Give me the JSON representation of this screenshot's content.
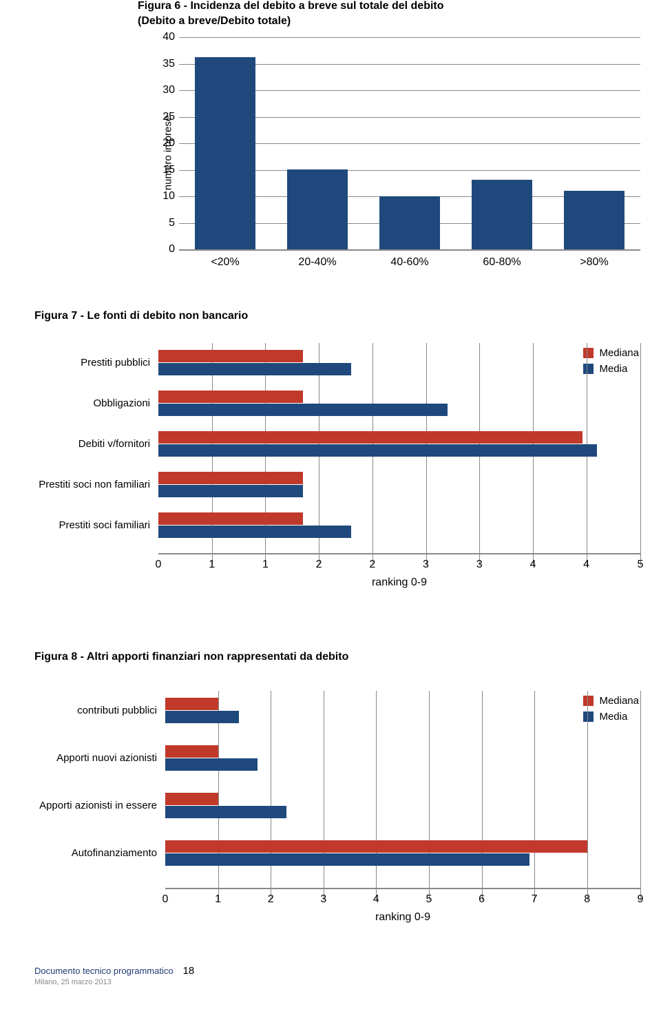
{
  "colors": {
    "bar_blue": "#1f497d",
    "bar_red": "#c0392b",
    "grid": "#888888",
    "background": "#ffffff"
  },
  "figure6": {
    "title": "Figura 6 - Incidenza del debito a breve sul totale del debito",
    "subtitle": "(Debito a breve/Debito totale)",
    "type": "bar",
    "ylabel": "numero imprese",
    "ylim": [
      0,
      40
    ],
    "ytick_step": 5,
    "yticks": [
      0,
      5,
      10,
      15,
      20,
      25,
      30,
      35,
      40
    ],
    "categories": [
      "<20%",
      "20-40%",
      "40-60%",
      "60-80%",
      ">80%"
    ],
    "values": [
      36,
      15,
      10,
      13,
      11
    ],
    "bar_color": "#1f497d",
    "label_fontsize": 16
  },
  "figure7": {
    "title": "Figura 7 - Le fonti di debito non bancario",
    "type": "grouped_horizontal_bar",
    "categories": [
      "Prestiti pubblici",
      "Obbligazioni",
      "Debiti v/fornitori",
      "Prestiti soci non familiari",
      "Prestiti soci familiari"
    ],
    "series": [
      {
        "name": "Mediana",
        "color": "#c0392b",
        "values": [
          1.5,
          1.5,
          4.4,
          1.5,
          1.5
        ]
      },
      {
        "name": "Media",
        "color": "#1f497d",
        "values": [
          2.0,
          3.0,
          4.55,
          1.5,
          2.0
        ]
      }
    ],
    "xlim": [
      0,
      5
    ],
    "xticks": [
      0,
      1,
      1,
      2,
      2,
      3,
      3,
      4,
      4,
      5
    ],
    "xtick_positions_pct": [
      0,
      11.1,
      22.2,
      33.3,
      44.4,
      55.5,
      66.6,
      77.7,
      88.8,
      100
    ],
    "grid_positions_pct": [
      11.1,
      22.2,
      33.3,
      44.4,
      55.5,
      66.6,
      77.7,
      88.8,
      100
    ],
    "xlabel": "ranking 0-9",
    "legend": [
      "Mediana",
      "Media"
    ]
  },
  "figure8": {
    "title": "Figura 8 - Altri apporti finanziari non rappresentati da debito",
    "type": "grouped_horizontal_bar",
    "categories": [
      "contributi pubblici",
      "Apporti nuovi azionisti",
      "Apporti azionisti in essere",
      "Autofinanziamento"
    ],
    "series": [
      {
        "name": "Mediana",
        "color": "#c0392b",
        "values": [
          1.0,
          1.0,
          1.0,
          8.0
        ]
      },
      {
        "name": "Media",
        "color": "#1f497d",
        "values": [
          1.4,
          1.75,
          2.3,
          6.9
        ]
      }
    ],
    "xlim": [
      0,
      9
    ],
    "xticks": [
      0,
      1,
      2,
      3,
      4,
      5,
      6,
      7,
      8,
      9
    ],
    "xtick_positions_pct": [
      0,
      11.1,
      22.2,
      33.3,
      44.4,
      55.5,
      66.6,
      77.7,
      88.8,
      100
    ],
    "grid_positions_pct": [
      11.1,
      22.2,
      33.3,
      44.4,
      55.5,
      66.6,
      77.7,
      88.8,
      100
    ],
    "xlabel": "ranking 0-9",
    "legend": [
      "Mediana",
      "Media"
    ]
  },
  "footer": {
    "doc": "Documento tecnico programmatico",
    "page": "18",
    "line2": "Milano, 25 marzo 2013"
  }
}
